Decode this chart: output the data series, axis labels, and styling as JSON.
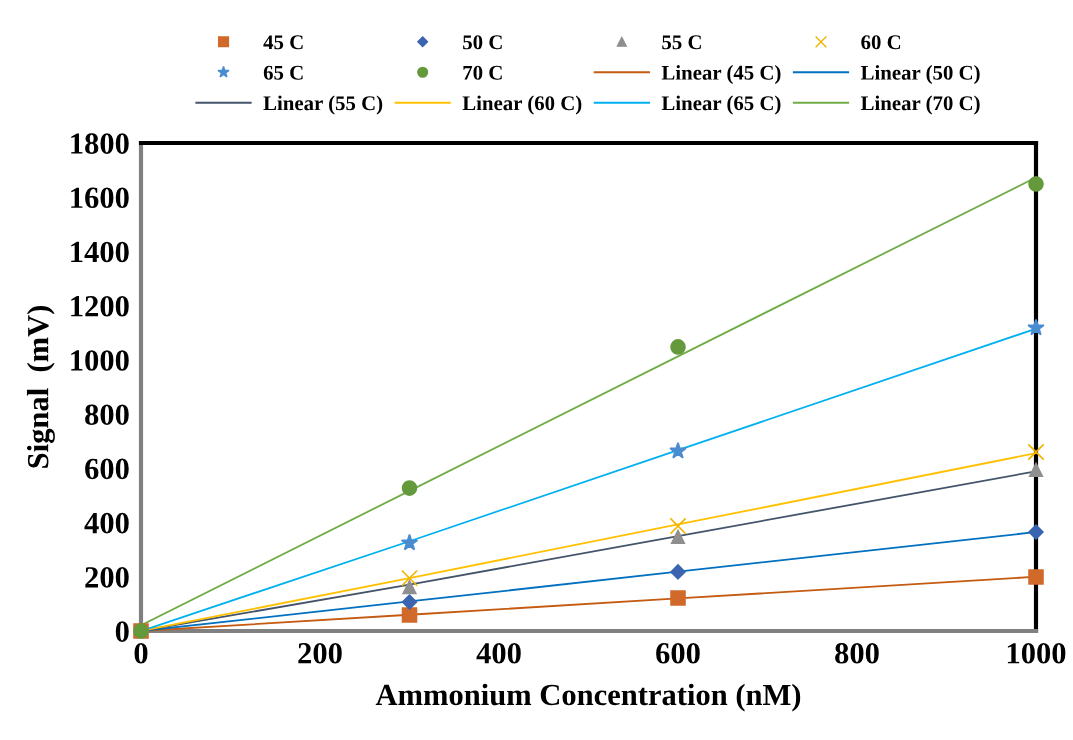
{
  "chart_data": {
    "type": "scatter",
    "xlabel": "Ammonium Concentration (nM)",
    "ylabel": "Signal  (mV)",
    "xlim": [
      0,
      1000
    ],
    "xticks": [
      0,
      200,
      400,
      600,
      800,
      1000
    ],
    "ylim": [
      0,
      1800
    ],
    "yticks": [
      0,
      200,
      400,
      600,
      800,
      1000,
      1200,
      1400,
      1600,
      1800
    ],
    "grid": false,
    "legend": "top",
    "x": [
      0,
      300,
      600,
      1000
    ],
    "series": [
      {
        "name": "45 C",
        "type": "scatter",
        "marker": "square",
        "color": "#d0692a",
        "values": [
          0,
          59,
          122,
          199
        ]
      },
      {
        "name": "50 C",
        "type": "scatter",
        "marker": "diamond",
        "color": "#3a64b0",
        "values": [
          null,
          107,
          218,
          365
        ]
      },
      {
        "name": "55 C",
        "type": "scatter",
        "marker": "triangle",
        "color": "#8f8f8f",
        "values": [
          null,
          162,
          347,
          594
        ]
      },
      {
        "name": "60 C",
        "type": "scatter",
        "marker": "cross",
        "color": "#f0b400",
        "values": [
          null,
          195,
          387,
          660
        ]
      },
      {
        "name": "65 C",
        "type": "scatter",
        "marker": "star",
        "color": "#4a8cd0",
        "values": [
          null,
          325,
          664,
          1118
        ]
      },
      {
        "name": "70 C",
        "type": "scatter",
        "marker": "circle",
        "color": "#64993c",
        "values": [
          0,
          527,
          1048,
          1649
        ]
      },
      {
        "name": "Linear (45 C)",
        "type": "line",
        "color": "#c55a11",
        "values": [
          0,
          60,
          120,
          200
        ]
      },
      {
        "name": "Linear (50 C)",
        "type": "line",
        "color": "#0070c0",
        "values": [
          0,
          109,
          219,
          365
        ]
      },
      {
        "name": "Linear (55 C)",
        "type": "line",
        "color": "#44546a",
        "values": [
          0,
          171,
          350,
          589
        ]
      },
      {
        "name": "Linear (60 C)",
        "type": "line",
        "color": "#ffc000",
        "values": [
          0,
          195,
          393,
          656
        ]
      },
      {
        "name": "Linear (65 C)",
        "type": "line",
        "color": "#00b0f0",
        "values": [
          0,
          331,
          667,
          1115
        ]
      },
      {
        "name": "Linear (70 C)",
        "type": "line",
        "color": "#70ad47",
        "values": [
          21,
          517,
          1013,
          1673
        ]
      }
    ]
  }
}
